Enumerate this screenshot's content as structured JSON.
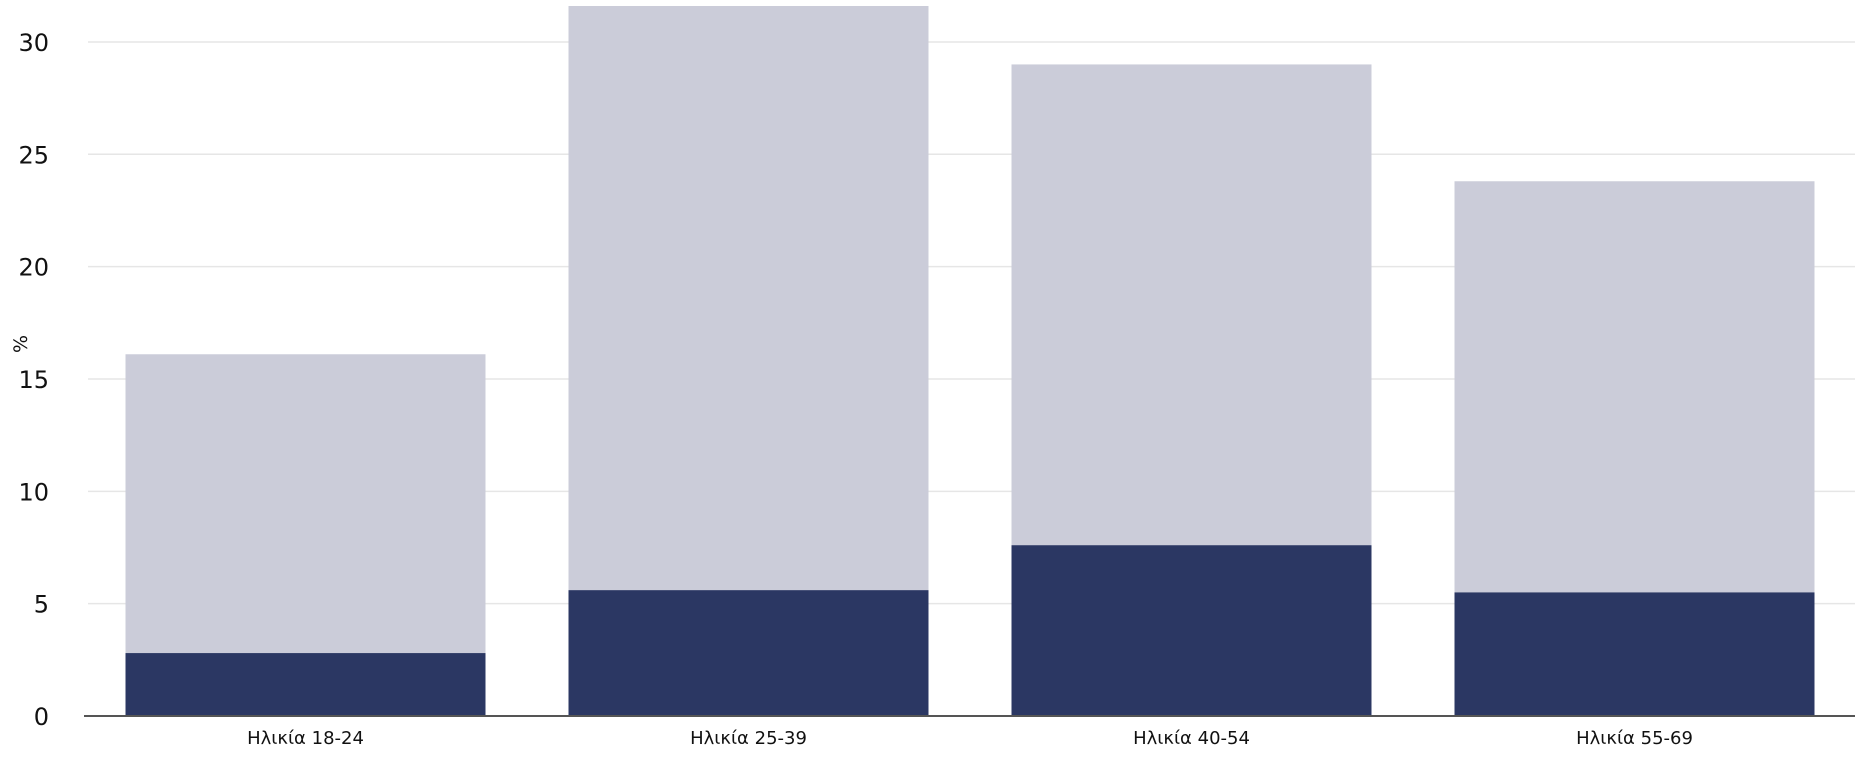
{
  "chart_data": {
    "type": "bar",
    "stacked": false,
    "overlay": true,
    "categories": [
      "Ηλικία 18-24",
      "Ηλικία 25-39",
      "Ηλικία 40-54",
      "Ηλικία 55-69"
    ],
    "series": [
      {
        "values": [
          16.1,
          31.6,
          29.0,
          23.8
        ],
        "color": "#cbccd9"
      },
      {
        "values": [
          2.8,
          5.6,
          7.6,
          5.5
        ],
        "color": "#2b3763"
      }
    ],
    "title": "",
    "xlabel": "",
    "ylabel": "%",
    "ylim": [
      0,
      31.6
    ],
    "yticks": [
      0,
      5,
      10,
      15,
      20,
      25,
      30
    ],
    "grid": true,
    "grid_color": "#e6e6e6",
    "axis_color": "#555555"
  }
}
